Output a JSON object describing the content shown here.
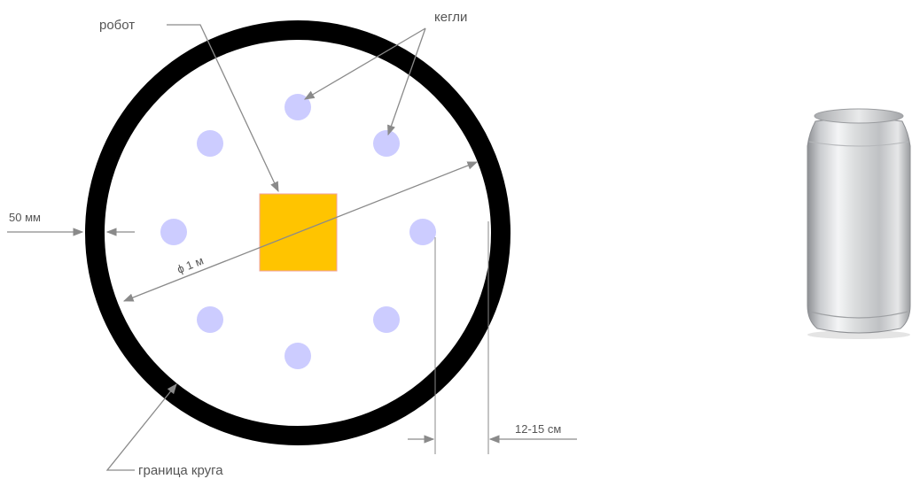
{
  "labels": {
    "robot": "робот",
    "pins": "кегли",
    "border": "граница круга",
    "border_width": "50 мм",
    "diameter": "ϕ 1 м",
    "offset": "12-15 см"
  },
  "colors": {
    "border": "#000000",
    "robot_fill": "#ffc400",
    "robot_stroke": "#f0a0a0",
    "pin": "#ccccff",
    "arrow": "#8a8a8a",
    "text": "#555555"
  },
  "pins": {
    "count": 8
  },
  "icons": {
    "can": "aluminum-can-icon"
  }
}
